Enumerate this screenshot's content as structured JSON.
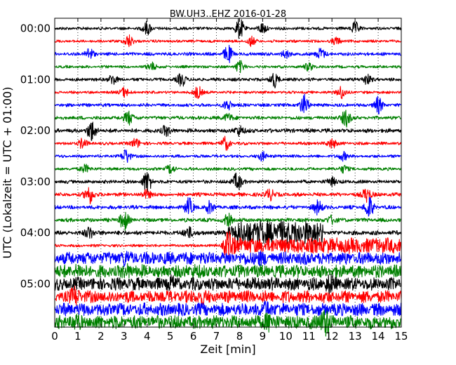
{
  "chart_data": {
    "type": "line",
    "title": "BW.UH3..EHZ 2016-01-28",
    "xlabel": "Zeit  [min]",
    "ylabel": "UTC (Lokalzeit = UTC + 01:00)",
    "xlim": [
      0,
      15
    ],
    "xticks": [
      "0",
      "1",
      "2",
      "3",
      "4",
      "5",
      "6",
      "7",
      "8",
      "9",
      "10",
      "11",
      "12",
      "13",
      "14",
      "15"
    ],
    "yticks": [
      "00:00",
      "01:00",
      "02:00",
      "03:00",
      "04:00",
      "05:00"
    ],
    "ytick_rows": [
      0,
      4,
      8,
      12,
      16,
      20
    ],
    "grid": "x-dotted",
    "colors": [
      "#000000",
      "#ff0000",
      "#0000ff",
      "#008000"
    ],
    "traces": [
      {
        "row": 0,
        "color": "#000000",
        "amp": 0.22,
        "bursts": [
          [
            4.0,
            0.9
          ],
          [
            8.0,
            1.4
          ],
          [
            9.0,
            0.7
          ],
          [
            13.0,
            0.8
          ]
        ]
      },
      {
        "row": 1,
        "color": "#ff0000",
        "amp": 0.2,
        "bursts": [
          [
            3.2,
            0.9
          ],
          [
            8.5,
            0.6
          ],
          [
            12.2,
            0.5
          ]
        ]
      },
      {
        "row": 2,
        "color": "#0000ff",
        "amp": 0.24,
        "bursts": [
          [
            1.5,
            0.8
          ],
          [
            7.5,
            1.2
          ],
          [
            10.0,
            0.5
          ],
          [
            11.5,
            0.8
          ]
        ]
      },
      {
        "row": 3,
        "color": "#008000",
        "amp": 0.2,
        "bursts": [
          [
            4.2,
            0.6
          ],
          [
            8.0,
            0.8
          ],
          [
            11.0,
            0.6
          ]
        ]
      },
      {
        "row": 4,
        "color": "#000000",
        "amp": 0.24,
        "bursts": [
          [
            2.5,
            0.7
          ],
          [
            5.5,
            0.9
          ],
          [
            9.5,
            1.0
          ],
          [
            13.5,
            0.7
          ]
        ]
      },
      {
        "row": 5,
        "color": "#ff0000",
        "amp": 0.2,
        "bursts": [
          [
            3.0,
            0.7
          ],
          [
            6.2,
            0.9
          ],
          [
            12.4,
            0.9
          ]
        ]
      },
      {
        "row": 6,
        "color": "#0000ff",
        "amp": 0.24,
        "bursts": [
          [
            7.5,
            0.7
          ],
          [
            10.8,
            1.4
          ],
          [
            14.0,
            1.1
          ]
        ]
      },
      {
        "row": 7,
        "color": "#008000",
        "amp": 0.26,
        "bursts": [
          [
            3.2,
            1.0
          ],
          [
            7.5,
            0.6
          ],
          [
            12.6,
            1.2
          ]
        ]
      },
      {
        "row": 8,
        "color": "#000000",
        "amp": 0.3,
        "bursts": [
          [
            1.6,
            1.4
          ],
          [
            4.8,
            0.7
          ],
          [
            8.0,
            0.7
          ]
        ]
      },
      {
        "row": 9,
        "color": "#ff0000",
        "amp": 0.22,
        "bursts": [
          [
            1.2,
            0.7
          ],
          [
            3.5,
            0.7
          ],
          [
            7.4,
            0.9
          ],
          [
            12.0,
            0.7
          ]
        ]
      },
      {
        "row": 10,
        "color": "#0000ff",
        "amp": 0.22,
        "bursts": [
          [
            3.1,
            1.0
          ],
          [
            9.0,
            0.6
          ],
          [
            12.5,
            0.6
          ]
        ]
      },
      {
        "row": 11,
        "color": "#008000",
        "amp": 0.22,
        "bursts": [
          [
            1.3,
            0.6
          ],
          [
            5.0,
            0.6
          ],
          [
            12.5,
            0.5
          ]
        ]
      },
      {
        "row": 12,
        "color": "#000000",
        "amp": 0.26,
        "bursts": [
          [
            4.0,
            1.5
          ],
          [
            7.9,
            1.3
          ],
          [
            12.0,
            0.6
          ]
        ]
      },
      {
        "row": 13,
        "color": "#ff0000",
        "amp": 0.28,
        "bursts": [
          [
            1.5,
            1.3
          ],
          [
            4.0,
            0.6
          ],
          [
            9.3,
            0.8
          ],
          [
            13.5,
            1.0
          ]
        ]
      },
      {
        "row": 14,
        "color": "#0000ff",
        "amp": 0.28,
        "bursts": [
          [
            5.8,
            1.2
          ],
          [
            6.7,
            0.8
          ],
          [
            11.4,
            1.0
          ],
          [
            13.6,
            1.5
          ]
        ]
      },
      {
        "row": 15,
        "color": "#008000",
        "amp": 0.28,
        "bursts": [
          [
            3.0,
            1.4
          ],
          [
            7.5,
            0.8
          ],
          [
            12.0,
            0.6
          ]
        ]
      },
      {
        "row": 16,
        "color": "#000000",
        "amp": 0.32,
        "bursts": [
          [
            1.5,
            0.8
          ],
          [
            5.8,
            0.8
          ],
          [
            7.6,
            0.8
          ]
        ],
        "plateau": [
          [
            7.8,
            11.6,
            1.6
          ]
        ]
      },
      {
        "row": 17,
        "color": "#ff0000",
        "amp": 0.2,
        "bursts": [
          [
            7.5,
            2.2
          ]
        ],
        "plateau": [
          [
            7.6,
            15.0,
            1.0
          ]
        ]
      },
      {
        "row": 18,
        "color": "#0000ff",
        "amp": 0.95,
        "bursts": [
          [
            3.0,
            0.5
          ],
          [
            8.8,
            0.5
          ]
        ]
      },
      {
        "row": 19,
        "color": "#008000",
        "amp": 0.95,
        "bursts": [
          [
            1.0,
            0.4
          ],
          [
            3.2,
            0.4
          ],
          [
            6.0,
            0.4
          ]
        ]
      },
      {
        "row": 20,
        "color": "#000000",
        "amp": 0.95,
        "bursts": [
          [
            5.0,
            0.5
          ],
          [
            11.9,
            0.8
          ]
        ]
      },
      {
        "row": 21,
        "color": "#ff0000",
        "amp": 0.9,
        "bursts": [
          [
            0.9,
            0.9
          ],
          [
            6.3,
            0.6
          ]
        ]
      },
      {
        "row": 22,
        "color": "#0000ff",
        "amp": 0.95,
        "bursts": [
          [
            9.2,
            0.6
          ]
        ]
      },
      {
        "row": 23,
        "color": "#008000",
        "amp": 1.0,
        "bursts": [
          [
            0.9,
            0.5
          ],
          [
            9.2,
            0.8
          ],
          [
            11.7,
            1.6
          ]
        ]
      }
    ]
  }
}
